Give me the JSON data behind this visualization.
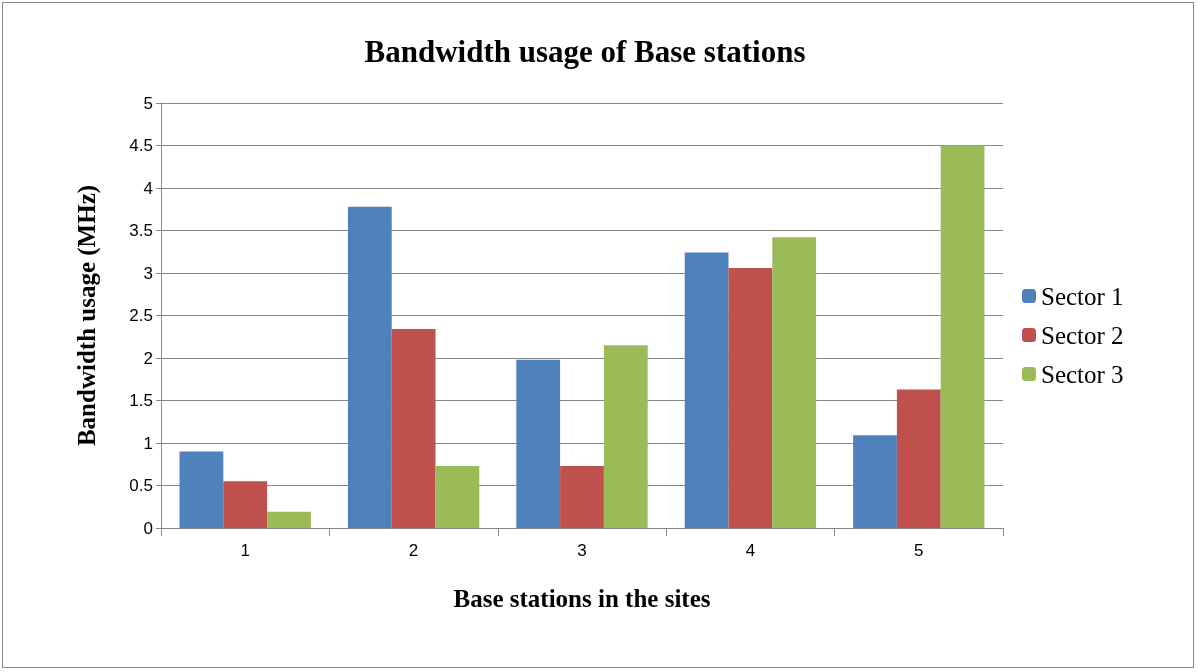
{
  "chart_data": {
    "type": "bar",
    "title": "Bandwidth usage of Base stations",
    "xlabel": "Base stations in the sites",
    "ylabel": "Bandwidth usage (MHz)",
    "categories": [
      "1",
      "2",
      "3",
      "4",
      "5"
    ],
    "series": [
      {
        "name": "Sector 1",
        "color": "#4f81bd",
        "values": [
          0.9,
          3.78,
          1.98,
          3.24,
          1.09
        ]
      },
      {
        "name": "Sector 2",
        "color": "#c0504d",
        "values": [
          0.55,
          2.34,
          0.73,
          3.06,
          1.63
        ]
      },
      {
        "name": "Sector 3",
        "color": "#9bbb59",
        "values": [
          0.19,
          0.73,
          2.15,
          3.42,
          4.5
        ]
      }
    ],
    "ylim": [
      0,
      5
    ],
    "yticks": [
      0,
      0.5,
      1,
      1.5,
      2,
      2.5,
      3,
      3.5,
      4,
      4.5,
      5
    ],
    "grid": "y",
    "legend": "right"
  }
}
